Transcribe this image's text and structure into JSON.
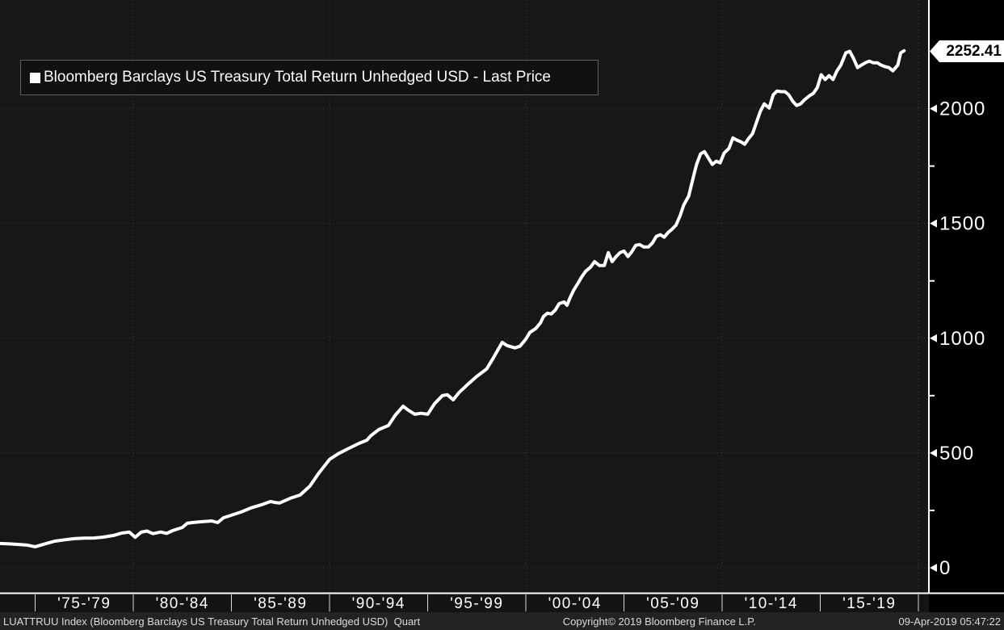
{
  "legend": {
    "swatch_color": "#ffffff",
    "label": "Bloomberg Barclays US Treasury Total Return Unhedged USD - Last Price"
  },
  "price_tag": {
    "value": "2252.41"
  },
  "status_bar": {
    "left": "LUATTRUU Index (Bloomberg Barclays US Treasury Total Return Unhedged USD)  Quart",
    "center": "Copyright© 2019 Bloomberg Finance L.P.",
    "right": "09-Apr-2019 05:47:22"
  },
  "colors": {
    "background": "#000000",
    "plot_background": "#171717",
    "band_background": "#141414",
    "statusbar_background": "#232323",
    "gridline": "#3d3d3d",
    "series_line": "#ffffff",
    "axis": "#ffffff",
    "tag_background": "#ffffff",
    "tag_text": "#000000"
  },
  "chart_data": {
    "type": "line",
    "title": "Bloomberg Barclays US Treasury Total Return Unhedged USD - Last Price",
    "ticker": "LUATTRUU Index",
    "last_price": 2252.41,
    "grid": "dotted",
    "legend_position": "top-left",
    "x_axis": {
      "unit": "year",
      "range_years": [
        1973.2,
        2020.0
      ],
      "labels": [
        "'75-'79",
        "'80-'84",
        "'85-'89",
        "'90-'94",
        "'95-'99",
        "'00-'04",
        "'05-'09",
        "'10-'14",
        "'15-'19"
      ],
      "label_center_years": [
        1977.5,
        1982.5,
        1987.5,
        1992.5,
        1997.5,
        2002.5,
        2007.5,
        2012.5,
        2017.5
      ],
      "separator_years": [
        1975,
        1980,
        1985,
        1990,
        1995,
        2000,
        2005,
        2010,
        2015,
        2020
      ],
      "gridline_years": [
        1980,
        1990,
        2000,
        2010,
        2020
      ]
    },
    "y_axis": {
      "side": "right",
      "range": [
        0,
        2473
      ],
      "tick_values": [
        0,
        500,
        1000,
        1500,
        2000
      ],
      "minor_tick_values": [
        250,
        750,
        1250,
        1750
      ]
    },
    "series": [
      {
        "name": "Last Price",
        "color": "#ffffff",
        "points": [
          [
            1973.24,
            106
          ],
          [
            1973.7,
            104
          ],
          [
            1974.1,
            102
          ],
          [
            1974.6,
            99
          ],
          [
            1975.0,
            92
          ],
          [
            1975.5,
            104
          ],
          [
            1976.0,
            116
          ],
          [
            1976.5,
            122
          ],
          [
            1977.0,
            127
          ],
          [
            1977.5,
            129
          ],
          [
            1978.0,
            130
          ],
          [
            1978.5,
            134
          ],
          [
            1979.0,
            141
          ],
          [
            1979.4,
            151
          ],
          [
            1979.8,
            156
          ],
          [
            1980.1,
            133
          ],
          [
            1980.4,
            155
          ],
          [
            1980.7,
            160
          ],
          [
            1981.0,
            149
          ],
          [
            1981.4,
            156
          ],
          [
            1981.7,
            150
          ],
          [
            1982.0,
            162
          ],
          [
            1982.5,
            176
          ],
          [
            1982.75,
            194
          ],
          [
            1983.0,
            197
          ],
          [
            1983.5,
            201
          ],
          [
            1984.0,
            204
          ],
          [
            1984.3,
            197
          ],
          [
            1984.6,
            218
          ],
          [
            1985.0,
            229
          ],
          [
            1985.5,
            243
          ],
          [
            1986.0,
            261
          ],
          [
            1986.55,
            275
          ],
          [
            1987.0,
            289
          ],
          [
            1987.2,
            285
          ],
          [
            1987.45,
            282
          ],
          [
            1988.0,
            303
          ],
          [
            1988.5,
            317
          ],
          [
            1989.0,
            356
          ],
          [
            1989.45,
            412
          ],
          [
            1990.0,
            472
          ],
          [
            1990.45,
            497
          ],
          [
            1991.0,
            521
          ],
          [
            1991.5,
            542
          ],
          [
            1991.9,
            556
          ],
          [
            1992.1,
            575
          ],
          [
            1992.5,
            602
          ],
          [
            1993.0,
            620
          ],
          [
            1993.35,
            665
          ],
          [
            1993.75,
            704
          ],
          [
            1994.0,
            687
          ],
          [
            1994.35,
            669
          ],
          [
            1994.65,
            673
          ],
          [
            1995.0,
            669
          ],
          [
            1995.35,
            715
          ],
          [
            1995.75,
            750
          ],
          [
            1996.0,
            754
          ],
          [
            1996.3,
            732
          ],
          [
            1996.6,
            764
          ],
          [
            1997.0,
            796
          ],
          [
            1997.5,
            834
          ],
          [
            1998.0,
            866
          ],
          [
            1998.35,
            915
          ],
          [
            1998.8,
            982
          ],
          [
            1999.05,
            968
          ],
          [
            1999.45,
            958
          ],
          [
            1999.7,
            965
          ],
          [
            2000.0,
            996
          ],
          [
            2000.2,
            1025
          ],
          [
            2000.5,
            1042
          ],
          [
            2000.75,
            1067
          ],
          [
            2000.9,
            1095
          ],
          [
            2001.1,
            1109
          ],
          [
            2001.3,
            1106
          ],
          [
            2001.5,
            1123
          ],
          [
            2001.7,
            1151
          ],
          [
            2001.95,
            1158
          ],
          [
            2002.1,
            1144
          ],
          [
            2002.25,
            1176
          ],
          [
            2002.45,
            1211
          ],
          [
            2002.65,
            1239
          ],
          [
            2002.85,
            1268
          ],
          [
            2003.05,
            1292
          ],
          [
            2003.3,
            1310
          ],
          [
            2003.5,
            1334
          ],
          [
            2003.75,
            1317
          ],
          [
            2004.0,
            1317
          ],
          [
            2004.2,
            1373
          ],
          [
            2004.4,
            1334
          ],
          [
            2004.6,
            1356
          ],
          [
            2004.8,
            1373
          ],
          [
            2005.0,
            1380
          ],
          [
            2005.2,
            1356
          ],
          [
            2005.4,
            1377
          ],
          [
            2005.6,
            1405
          ],
          [
            2005.8,
            1408
          ],
          [
            2006.0,
            1398
          ],
          [
            2006.25,
            1398
          ],
          [
            2006.45,
            1415
          ],
          [
            2006.65,
            1444
          ],
          [
            2006.85,
            1451
          ],
          [
            2007.05,
            1440
          ],
          [
            2007.25,
            1461
          ],
          [
            2007.45,
            1475
          ],
          [
            2007.65,
            1493
          ],
          [
            2007.85,
            1532
          ],
          [
            2008.05,
            1581
          ],
          [
            2008.3,
            1620
          ],
          [
            2008.4,
            1655
          ],
          [
            2008.55,
            1708
          ],
          [
            2008.7,
            1757
          ],
          [
            2008.9,
            1803
          ],
          [
            2009.1,
            1813
          ],
          [
            2009.3,
            1785
          ],
          [
            2009.5,
            1757
          ],
          [
            2009.7,
            1771
          ],
          [
            2009.9,
            1764
          ],
          [
            2010.1,
            1806
          ],
          [
            2010.35,
            1827
          ],
          [
            2010.55,
            1873
          ],
          [
            2010.75,
            1863
          ],
          [
            2010.95,
            1856
          ],
          [
            2011.15,
            1845
          ],
          [
            2011.35,
            1870
          ],
          [
            2011.55,
            1891
          ],
          [
            2011.75,
            1940
          ],
          [
            2011.95,
            1989
          ],
          [
            2012.15,
            2021
          ],
          [
            2012.4,
            2003
          ],
          [
            2012.6,
            2060
          ],
          [
            2012.8,
            2077
          ],
          [
            2013.0,
            2074
          ],
          [
            2013.2,
            2074
          ],
          [
            2013.4,
            2060
          ],
          [
            2013.6,
            2032
          ],
          [
            2013.8,
            2014
          ],
          [
            2014.0,
            2021
          ],
          [
            2014.2,
            2039
          ],
          [
            2014.45,
            2056
          ],
          [
            2014.65,
            2067
          ],
          [
            2014.85,
            2092
          ],
          [
            2015.05,
            2148
          ],
          [
            2015.25,
            2127
          ],
          [
            2015.45,
            2144
          ],
          [
            2015.65,
            2127
          ],
          [
            2015.85,
            2165
          ],
          [
            2016.05,
            2190
          ],
          [
            2016.3,
            2243
          ],
          [
            2016.5,
            2250
          ],
          [
            2016.7,
            2218
          ],
          [
            2016.9,
            2179
          ],
          [
            2017.1,
            2190
          ],
          [
            2017.3,
            2200
          ],
          [
            2017.5,
            2207
          ],
          [
            2017.7,
            2200
          ],
          [
            2017.9,
            2200
          ],
          [
            2018.1,
            2190
          ],
          [
            2018.3,
            2183
          ],
          [
            2018.5,
            2179
          ],
          [
            2018.7,
            2165
          ],
          [
            2018.95,
            2190
          ],
          [
            2019.1,
            2243
          ],
          [
            2019.27,
            2252.41
          ]
        ]
      }
    ]
  }
}
